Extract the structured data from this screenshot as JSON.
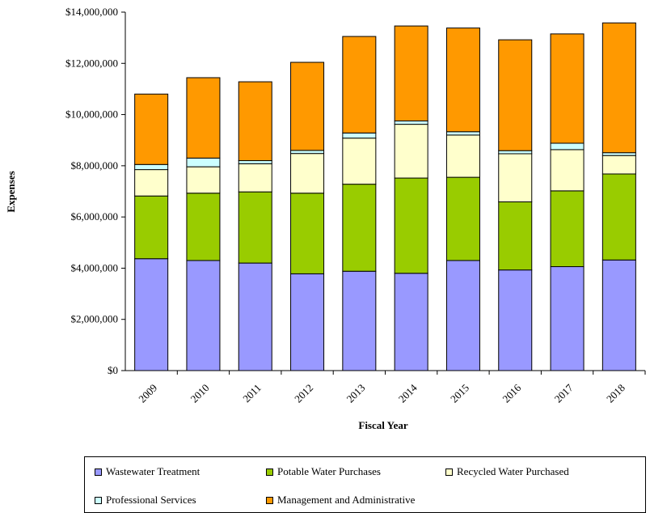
{
  "chart_data": {
    "type": "bar",
    "stacked": true,
    "title": "",
    "xlabel": "Fiscal Year",
    "ylabel": "Expenses",
    "ylim": [
      0,
      14000000
    ],
    "y_ticks": [
      0,
      2000000,
      4000000,
      6000000,
      8000000,
      10000000,
      12000000,
      14000000
    ],
    "y_tick_labels": [
      "$0",
      "$2,000,000",
      "$4,000,000",
      "$6,000,000",
      "$8,000,000",
      "$10,000,000",
      "$12,000,000",
      "$14,000,000"
    ],
    "categories": [
      "2009",
      "2010",
      "2011",
      "2012",
      "2013",
      "2014",
      "2015",
      "2016",
      "2017",
      "2018"
    ],
    "grid": false,
    "legend_position": "bottom",
    "series": [
      {
        "name": "Wastewater Treatment",
        "color": "#9999ff",
        "values": [
          4370000,
          4300000,
          4200000,
          3780000,
          3880000,
          3800000,
          4300000,
          3930000,
          4060000,
          4320000
        ]
      },
      {
        "name": "Potable Water Purchases",
        "color": "#99cc00",
        "values": [
          2450000,
          2630000,
          2780000,
          3150000,
          3400000,
          3720000,
          3250000,
          2660000,
          2960000,
          3360000
        ]
      },
      {
        "name": "Recycled Water Purchased",
        "color": "#ffffcc",
        "values": [
          1030000,
          1030000,
          1100000,
          1550000,
          1800000,
          2100000,
          1650000,
          1880000,
          1610000,
          720000
        ]
      },
      {
        "name": "Professional Services",
        "color": "#ccffff",
        "values": [
          200000,
          340000,
          120000,
          120000,
          200000,
          130000,
          130000,
          120000,
          250000,
          110000
        ]
      },
      {
        "name": "Management and Administrative",
        "color": "#ff9900",
        "values": [
          2750000,
          3140000,
          3080000,
          3440000,
          3770000,
          3710000,
          4050000,
          4330000,
          4270000,
          5070000
        ]
      }
    ]
  }
}
